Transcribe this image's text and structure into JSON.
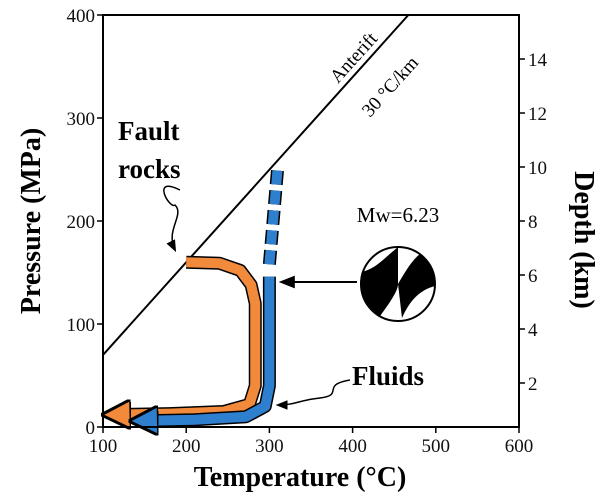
{
  "chart_data": {
    "type": "line",
    "xlabel": "Temperature (°C)",
    "ylabel": "Pressure (MPa)",
    "y2label": "Depth (km)",
    "xlim": [
      100,
      600
    ],
    "xticks": [
      100,
      200,
      300,
      400,
      500,
      600
    ],
    "ylim": [
      0,
      400
    ],
    "yticks": [
      0,
      100,
      200,
      300,
      400
    ],
    "y2lim": [
      0.37,
      15.63
    ],
    "y2ticks": [
      2,
      4,
      6,
      8,
      10,
      12,
      14
    ],
    "series": [
      {
        "color": "#000000",
        "x": [
          100,
          467
        ],
        "values": [
          70,
          400
        ]
      },
      {
        "color": "#f28a3c",
        "x": [
          200,
          240,
          265,
          278,
          283,
          283,
          276,
          245,
          180,
          112
        ],
        "values": [
          160,
          159,
          152,
          138,
          120,
          40,
          22,
          15,
          13,
          12
        ]
      },
      {
        "color": "#2f7fcf",
        "x": [
          300,
          300,
          295,
          272,
          210,
          145
        ],
        "values": [
          146,
          40,
          20,
          10,
          7,
          6
        ]
      },
      {
        "color": "#2f7fcf",
        "dashed": true,
        "x": [
          300,
          310
        ],
        "values": [
          158,
          252
        ]
      }
    ],
    "annotations": {
      "fault_rocks": [
        "Fault",
        "rocks"
      ],
      "fluids": "Fluids",
      "magnitude": "Mw=6.23",
      "geotherm_name": "Anterift",
      "geotherm_gradient": "30 °C/km"
    }
  }
}
